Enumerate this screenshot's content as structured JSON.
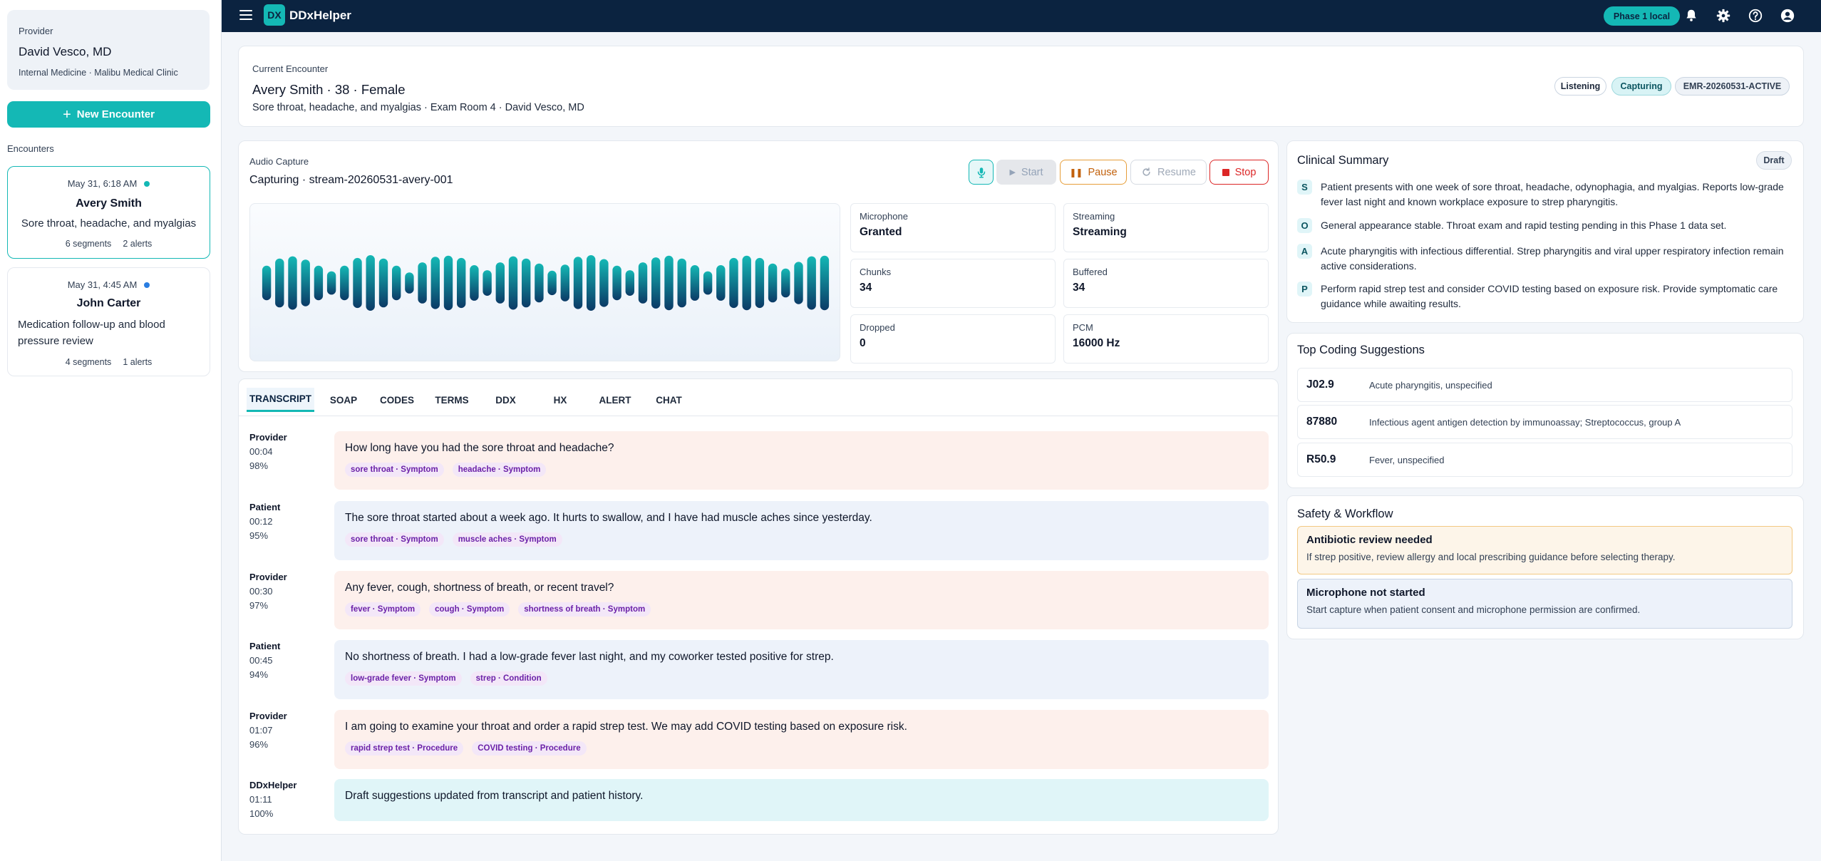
{
  "sidebar": {
    "provider_label": "Provider",
    "provider_name": "David Vesco, MD",
    "provider_sub": "Internal Medicine · Malibu Medical Clinic",
    "new_encounter": "New Encounter",
    "encounters_heading": "Encounters",
    "encounters": [
      {
        "date": "May 31, 6:18 AM",
        "name": "Avery Smith",
        "reason": "Sore throat, headache, and myalgias",
        "segments": "6 segments",
        "alerts": "2 alerts",
        "dot_color": "#14b8b5"
      },
      {
        "date": "May 31, 4:45 AM",
        "name": "John Carter",
        "reason": "Medication follow-up and blood pressure review",
        "segments": "4 segments",
        "alerts": "1 alerts",
        "dot_color": "#2a7de1"
      }
    ]
  },
  "topbar": {
    "menu_icon": "hamburger-menu-icon",
    "logo": "DX",
    "brand": "DDxHelper",
    "phase_badge": "Phase 1 local",
    "icons": [
      "bell-icon",
      "gear-icon",
      "help-icon",
      "user-icon"
    ]
  },
  "encounter": {
    "label": "Current Encounter",
    "title": "Avery Smith · 38 · Female",
    "subtitle": "Sore throat, headache, and myalgias · Exam Room 4 · David Vesco, MD",
    "pills": [
      "Listening",
      "Capturing",
      "EMR-20260531-ACTIVE"
    ]
  },
  "audio": {
    "label": "Audio Capture",
    "status": "Capturing · stream-20260531-avery-001",
    "buttons": {
      "start": "Start",
      "pause": "Pause",
      "resume": "Resume",
      "stop": "Stop"
    },
    "stats": [
      {
        "k": "Microphone",
        "v": "Granted"
      },
      {
        "k": "Streaming",
        "v": "Streaming"
      },
      {
        "k": "Chunks",
        "v": "34"
      },
      {
        "k": "Buffered",
        "v": "34"
      },
      {
        "k": "Dropped",
        "v": "0"
      },
      {
        "k": "PCM",
        "v": "16000 Hz"
      }
    ],
    "waveform_levels": [
      0.62,
      0.88,
      0.96,
      0.84,
      0.62,
      0.42,
      0.62,
      0.9,
      1.0,
      0.88,
      0.62,
      0.38,
      0.74,
      0.94,
      0.98,
      0.9,
      0.64,
      0.46,
      0.74,
      0.96,
      0.88,
      0.7,
      0.44,
      0.66,
      0.94,
      1.0,
      0.86,
      0.62,
      0.46,
      0.74,
      0.92,
      0.98,
      0.88,
      0.64,
      0.42,
      0.64,
      0.9,
      0.98,
      0.9,
      0.7,
      0.52,
      0.76,
      0.96,
      0.98
    ]
  },
  "tabs": [
    "TRANSCRIPT",
    "SOAP",
    "CODES",
    "TERMS",
    "DDX",
    "HX",
    "ALERT",
    "CHAT"
  ],
  "transcript": [
    {
      "speaker": "Provider",
      "time": "00:04",
      "conf": "98%",
      "text": "How long have you had the sore throat and headache?",
      "tags": [
        "sore throat · Symptom",
        "headache · Symptom"
      ]
    },
    {
      "speaker": "Patient",
      "time": "00:12",
      "conf": "95%",
      "text": "The sore throat started about a week ago. It hurts to swallow, and I have had muscle aches since yesterday.",
      "tags": [
        "sore throat · Symptom",
        "muscle aches · Symptom"
      ]
    },
    {
      "speaker": "Provider",
      "time": "00:30",
      "conf": "97%",
      "text": "Any fever, cough, shortness of breath, or recent travel?",
      "tags": [
        "fever · Symptom",
        "cough · Symptom",
        "shortness of breath · Symptom"
      ]
    },
    {
      "speaker": "Patient",
      "time": "00:45",
      "conf": "94%",
      "text": "No shortness of breath. I had a low-grade fever last night, and my coworker tested positive for strep.",
      "tags": [
        "low-grade fever · Symptom",
        "strep · Condition"
      ]
    },
    {
      "speaker": "Provider",
      "time": "01:07",
      "conf": "96%",
      "text": "I am going to examine your throat and order a rapid strep test. We may add COVID testing based on exposure risk.",
      "tags": [
        "rapid strep test · Procedure",
        "COVID testing · Procedure"
      ]
    },
    {
      "speaker": "DDxHelper",
      "time": "01:11",
      "conf": "100%",
      "text": "Draft suggestions updated from transcript and patient history.",
      "tags": []
    }
  ],
  "summary": {
    "title": "Clinical Summary",
    "badge": "Draft",
    "items": [
      {
        "letter": "S",
        "text": "Patient presents with one week of sore throat, headache, odynophagia, and myalgias. Reports low-grade fever last night and known workplace exposure to strep pharyngitis."
      },
      {
        "letter": "O",
        "text": "General appearance stable. Throat exam and rapid testing pending in this Phase 1 data set."
      },
      {
        "letter": "A",
        "text": "Acute pharyngitis with infectious differential. Strep pharyngitis and viral upper respiratory infection remain active considerations."
      },
      {
        "letter": "P",
        "text": "Perform rapid strep test and consider COVID testing based on exposure risk. Provide symptomatic care guidance while awaiting results."
      }
    ]
  },
  "coding": {
    "title": "Top Coding Suggestions",
    "items": [
      {
        "code": "J02.9",
        "desc": "Acute pharyngitis, unspecified"
      },
      {
        "code": "87880",
        "desc": "Infectious agent antigen detection by immunoassay; Streptococcus, group A"
      },
      {
        "code": "R50.9",
        "desc": "Fever, unspecified"
      }
    ]
  },
  "safety": {
    "title": "Safety & Workflow",
    "alerts": [
      {
        "title": "Antibiotic review needed",
        "desc": "If strep positive, review allergy and local prescribing guidance before selecting therapy."
      },
      {
        "title": "Microphone not started",
        "desc": "Start capture when patient consent and microphone permission are confirmed."
      }
    ]
  }
}
